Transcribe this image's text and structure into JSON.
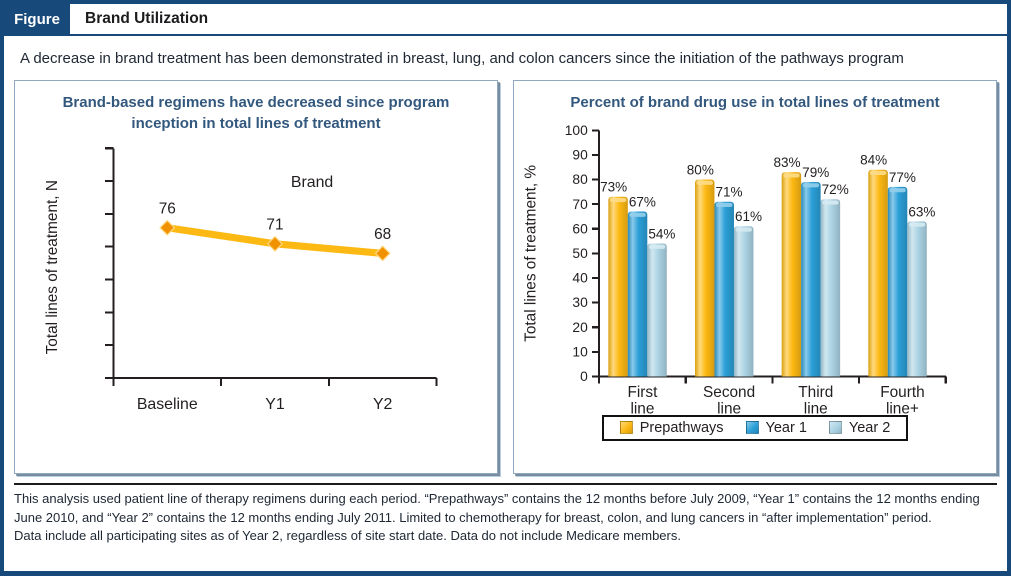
{
  "header": {
    "tab_label": "Figure",
    "title": "Brand Utilization"
  },
  "intro": "A decrease in brand treatment has been demonstrated in breast, lung, and colon cancers since the initiation of the pathways program",
  "footnote": {
    "lines": [
      "This analysis used patient line of therapy regimens during each period. “Prepathways” contains the 12 months before July 2009, “Year 1” contains the 12 months ending",
      "June 2010, and “Year 2” contains the 12 months ending July 2011. Limited to chemotherapy for breast, colon, and lung cancers in “after implementation” period.",
      "Data include all participating sites as of Year 2, regardless of site start date. Data do not include Medicare members."
    ]
  },
  "colors": {
    "navy": "#17497B",
    "panel_title_blue": "#33587E",
    "prepathways_yellow": "#FDB913",
    "year1_blue": "#2B9FD8",
    "year2_lightblue": "#ACD4E4",
    "text_ink": "#231F20"
  },
  "chart_data": [
    {
      "type": "line",
      "title": "Brand-based regimens have decreased since program inception in total lines of treatment",
      "series_label": "Brand",
      "categories": [
        "Baseline",
        "Y1",
        "Y2"
      ],
      "values": [
        76,
        71,
        68
      ],
      "data_labels": [
        "76",
        "71",
        "68"
      ],
      "ylabel": "Total lines of treatment, N",
      "xlabel": "",
      "line_color": "#FDB913",
      "marker": "diamond",
      "y_axis_numeric_labels": false,
      "y_axis_tick_count": 8,
      "grid": false,
      "legend_position": "none"
    },
    {
      "type": "bar",
      "title": "Percent of brand drug use in total lines of treatment",
      "categories": [
        "First line",
        "Second line",
        "Third line",
        "Fourth line+"
      ],
      "category_label_lines": [
        [
          "First",
          "line"
        ],
        [
          "Second",
          "line"
        ],
        [
          "Third",
          "line"
        ],
        [
          "Fourth",
          "line+"
        ]
      ],
      "series": [
        {
          "name": "Prepathways",
          "color": "#FDB913",
          "values": [
            73,
            80,
            83,
            84
          ]
        },
        {
          "name": "Year 1",
          "color": "#2B9FD8",
          "values": [
            67,
            71,
            79,
            77
          ]
        },
        {
          "name": "Year 2",
          "color": "#ACD4E4",
          "values": [
            54,
            61,
            72,
            63
          ]
        }
      ],
      "value_labels": [
        [
          "73%",
          "80%",
          "83%",
          "84%"
        ],
        [
          "67%",
          "71%",
          "79%",
          "77%"
        ],
        [
          "54%",
          "61%",
          "72%",
          "63%"
        ]
      ],
      "ylabel": "Total lines of treatment, %",
      "xlabel": "",
      "ylim": [
        0,
        100
      ],
      "ytick_step": 10,
      "grid": false,
      "legend_position": "bottom"
    }
  ]
}
